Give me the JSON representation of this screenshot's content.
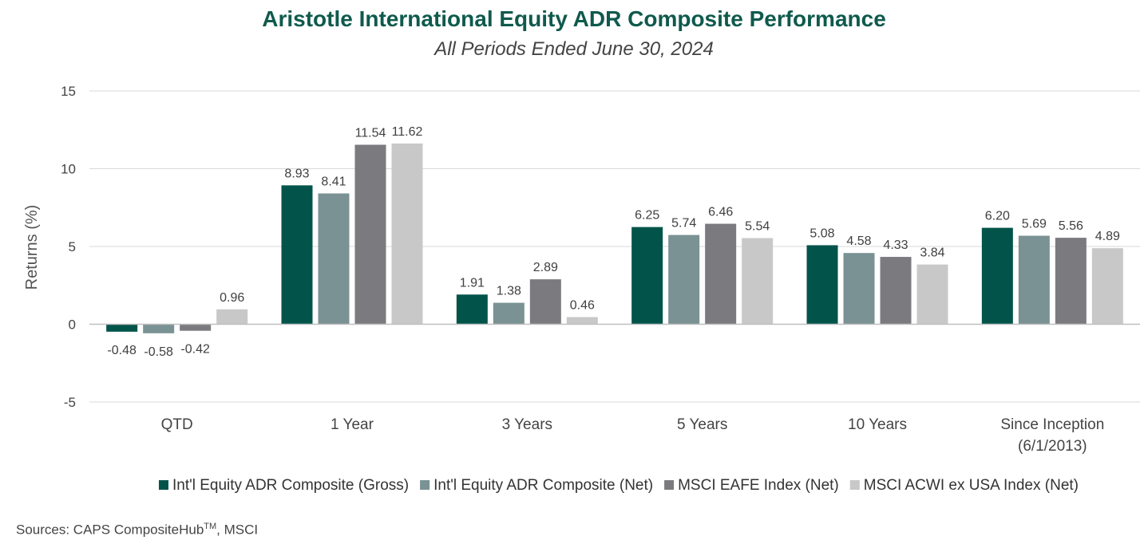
{
  "chart_data": {
    "type": "bar",
    "title": "Aristotle International Equity ADR Composite Performance",
    "subtitle": "All Periods Ended June 30, 2024",
    "ylabel": "Returns (%)",
    "xlabel": "",
    "ylim": [
      -5,
      15
    ],
    "yticks": [
      "-5",
      "0",
      "5",
      "10",
      "15"
    ],
    "grid": true,
    "legend_position": "bottom",
    "categories": [
      [
        "QTD"
      ],
      [
        "1 Year"
      ],
      [
        "3 Years"
      ],
      [
        "5 Years"
      ],
      [
        "10 Years"
      ],
      [
        "Since Inception",
        "(6/1/2013)"
      ]
    ],
    "series": [
      {
        "name": "Int'l Equity ADR Composite (Gross)",
        "color": "#02544a",
        "values": [
          -0.48,
          8.93,
          1.91,
          6.25,
          5.08,
          6.2
        ],
        "labels": [
          "-0.48",
          "8.93",
          "1.91",
          "6.25",
          "5.08",
          "6.20"
        ]
      },
      {
        "name": "Int'l Equity ADR Composite (Net)",
        "color": "#7a9294",
        "values": [
          -0.58,
          8.41,
          1.38,
          5.74,
          4.58,
          5.69
        ],
        "labels": [
          "-0.58",
          "8.41",
          "1.38",
          "5.74",
          "4.58",
          "5.69"
        ]
      },
      {
        "name": "MSCI EAFE Index (Net)",
        "color": "#7b7b7f",
        "values": [
          -0.42,
          11.54,
          2.89,
          6.46,
          4.33,
          5.56
        ],
        "labels": [
          "-0.42",
          "11.54",
          "2.89",
          "6.46",
          "4.33",
          "5.56"
        ]
      },
      {
        "name": "MSCI ACWI ex USA Index (Net)",
        "color": "#c8c8c8",
        "values": [
          0.96,
          11.62,
          0.46,
          5.54,
          3.84,
          4.89
        ],
        "labels": [
          "0.96",
          "11.62",
          "0.46",
          "5.54",
          "3.84",
          "4.89"
        ]
      }
    ]
  },
  "footer": {
    "sources_prefix": "Sources: CAPS CompositeHub",
    "sources_sup": "TM",
    "sources_suffix": ", MSCI"
  }
}
